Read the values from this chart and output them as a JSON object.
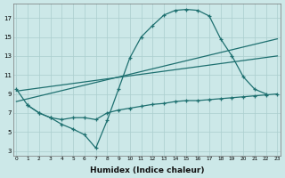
{
  "background_color": "#cce8e8",
  "grid_color": "#aacece",
  "line_color": "#1e7070",
  "xlabel": "Humidex (Indice chaleur)",
  "xlabel_fontsize": 6.5,
  "ytick_labels": [
    "3",
    "5",
    "7",
    "9",
    "11",
    "13",
    "15",
    "17"
  ],
  "ytick_values": [
    3,
    5,
    7,
    9,
    11,
    13,
    15,
    17
  ],
  "xtick_values": [
    0,
    1,
    2,
    3,
    4,
    5,
    6,
    7,
    8,
    9,
    10,
    11,
    12,
    13,
    14,
    15,
    16,
    17,
    18,
    19,
    20,
    21,
    22,
    23
  ],
  "xlim": [
    0,
    23
  ],
  "ylim": [
    2.5,
    18.5
  ],
  "line1": {
    "x": [
      0,
      1,
      2,
      3,
      4,
      5,
      6,
      7,
      8,
      9,
      10,
      11,
      12,
      13,
      14,
      15,
      16,
      17,
      18,
      19,
      20,
      21,
      22
    ],
    "y": [
      9.5,
      7.8,
      7.0,
      6.5,
      5.8,
      5.3,
      4.7,
      3.3,
      6.2,
      9.5,
      12.8,
      15.0,
      16.2,
      17.3,
      17.8,
      17.9,
      17.8,
      17.2,
      14.8,
      13.0,
      10.8,
      9.5,
      9.0
    ]
  },
  "line2": {
    "x": [
      0,
      23
    ],
    "y": [
      9.3,
      13.0
    ]
  },
  "line3": {
    "x": [
      0,
      23
    ],
    "y": [
      8.2,
      14.8
    ]
  },
  "line4": {
    "x": [
      1,
      2,
      3,
      4,
      5,
      6,
      7,
      8,
      9,
      10,
      11,
      12,
      13,
      14,
      15,
      16,
      17,
      18,
      19,
      20,
      21,
      22,
      23
    ],
    "y": [
      7.8,
      7.0,
      6.5,
      6.3,
      6.5,
      6.5,
      6.3,
      7.0,
      7.3,
      7.5,
      7.7,
      7.9,
      8.0,
      8.2,
      8.3,
      8.3,
      8.4,
      8.5,
      8.6,
      8.7,
      8.8,
      8.9,
      9.0
    ]
  }
}
